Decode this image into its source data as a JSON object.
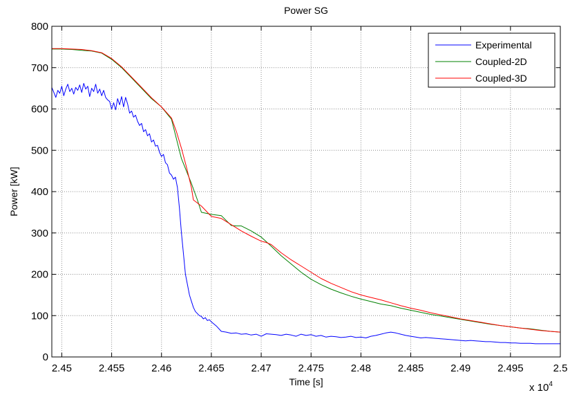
{
  "chart_data": {
    "type": "line",
    "title": "Power SG",
    "xlabel": "Time [s]",
    "ylabel": "Power [kW]",
    "x_multiplier_base": "x 10",
    "x_multiplier_exponent": "4",
    "xlim": [
      2.449,
      2.5
    ],
    "ylim": [
      0,
      800
    ],
    "xticks": [
      2.45,
      2.455,
      2.46,
      2.465,
      2.47,
      2.475,
      2.48,
      2.485,
      2.49,
      2.495,
      2.5
    ],
    "xtick_labels": [
      "2.45",
      "2.455",
      "2.46",
      "2.465",
      "2.47",
      "2.475",
      "2.48",
      "2.485",
      "2.49",
      "2.495",
      "2.5"
    ],
    "yticks": [
      0,
      100,
      200,
      300,
      400,
      500,
      600,
      700,
      800
    ],
    "ytick_labels": [
      "0",
      "100",
      "200",
      "300",
      "400",
      "500",
      "600",
      "700",
      "800"
    ],
    "grid": true,
    "legend_position": "top-right",
    "series": [
      {
        "name": "Experimental",
        "color": "#0000ff",
        "x": [
          2.449,
          2.4492,
          2.4494,
          2.4496,
          2.4498,
          2.45,
          2.4502,
          2.4504,
          2.4506,
          2.4508,
          2.451,
          2.4512,
          2.4514,
          2.4516,
          2.4518,
          2.452,
          2.4522,
          2.4524,
          2.4526,
          2.4528,
          2.453,
          2.4532,
          2.4534,
          2.4536,
          2.4538,
          2.454,
          2.4542,
          2.4544,
          2.4546,
          2.4548,
          2.455,
          2.4552,
          2.4554,
          2.4556,
          2.4558,
          2.456,
          2.4562,
          2.4564,
          2.4566,
          2.4568,
          2.457,
          2.4572,
          2.4574,
          2.4576,
          2.4578,
          2.458,
          2.4582,
          2.4584,
          2.4586,
          2.4588,
          2.459,
          2.4592,
          2.4594,
          2.4596,
          2.4598,
          2.46,
          2.4602,
          2.4604,
          2.4606,
          2.4608,
          2.461,
          2.4612,
          2.4614,
          2.4616,
          2.4618,
          2.462,
          2.4622,
          2.4624,
          2.4626,
          2.4628,
          2.463,
          2.4632,
          2.4634,
          2.4636,
          2.4638,
          2.464,
          2.4642,
          2.4644,
          2.4646,
          2.4648,
          2.465,
          2.4655,
          2.466,
          2.4665,
          2.467,
          2.4675,
          2.468,
          2.4685,
          2.469,
          2.4695,
          2.47,
          2.4705,
          2.471,
          2.4715,
          2.472,
          2.4725,
          2.473,
          2.4735,
          2.474,
          2.4745,
          2.475,
          2.4755,
          2.476,
          2.4765,
          2.477,
          2.4775,
          2.478,
          2.4785,
          2.479,
          2.4795,
          2.48,
          2.4805,
          2.481,
          2.4815,
          2.482,
          2.4825,
          2.483,
          2.4835,
          2.484,
          2.4845,
          2.485,
          2.4855,
          2.486,
          2.4865,
          2.487,
          2.4875,
          2.488,
          2.4885,
          2.489,
          2.4895,
          2.49,
          2.4905,
          2.491,
          2.4915,
          2.492,
          2.4925,
          2.493,
          2.4935,
          2.494,
          2.4945,
          2.495,
          2.4955,
          2.496,
          2.4965,
          2.497,
          2.4975,
          2.498,
          2.4985,
          2.499,
          2.4995,
          2.5
        ],
        "y": [
          652,
          640,
          628,
          645,
          638,
          655,
          632,
          648,
          660,
          642,
          650,
          636,
          652,
          645,
          658,
          640,
          662,
          648,
          655,
          630,
          650,
          642,
          660,
          638,
          648,
          632,
          645,
          628,
          622,
          618,
          600,
          615,
          598,
          625,
          610,
          630,
          605,
          628,
          612,
          590,
          595,
          580,
          585,
          570,
          560,
          565,
          545,
          550,
          535,
          540,
          520,
          525,
          510,
          512,
          495,
          485,
          490,
          470,
          465,
          445,
          440,
          430,
          435,
          410,
          360,
          300,
          250,
          200,
          175,
          150,
          135,
          120,
          110,
          105,
          100,
          98,
          92,
          95,
          88,
          90,
          85,
          75,
          62,
          60,
          57,
          58,
          55,
          56,
          53,
          55,
          50,
          56,
          55,
          54,
          52,
          55,
          53,
          50,
          55,
          52,
          54,
          50,
          52,
          48,
          50,
          49,
          47,
          48,
          50,
          47,
          48,
          46,
          50,
          52,
          55,
          58,
          60,
          58,
          55,
          52,
          50,
          48,
          46,
          47,
          46,
          45,
          44,
          43,
          42,
          41,
          40,
          39,
          40,
          39,
          38,
          37,
          37,
          36,
          35,
          35,
          34,
          34,
          33,
          33,
          33,
          32,
          32,
          32,
          32,
          32,
          32
        ]
      },
      {
        "name": "Coupled-2D",
        "color": "#008000",
        "x": [
          2.449,
          2.45,
          2.451,
          2.452,
          2.453,
          2.454,
          2.455,
          2.456,
          2.457,
          2.458,
          2.459,
          2.46,
          2.461,
          2.462,
          2.463,
          2.4636,
          2.464,
          2.465,
          2.466,
          2.4665,
          2.467,
          2.4675,
          2.468,
          2.469,
          2.47,
          2.471,
          2.472,
          2.473,
          2.474,
          2.475,
          2.476,
          2.477,
          2.478,
          2.479,
          2.48,
          2.481,
          2.482,
          2.483,
          2.484,
          2.485,
          2.486,
          2.487,
          2.488,
          2.489,
          2.49,
          2.491,
          2.492,
          2.493,
          2.494,
          2.495,
          2.496,
          2.497,
          2.498,
          2.499,
          2.5
        ],
        "y": [
          745,
          745,
          744,
          742,
          740,
          735,
          720,
          700,
          675,
          650,
          625,
          605,
          575,
          480,
          420,
          380,
          350,
          345,
          342,
          330,
          318,
          317,
          317,
          305,
          290,
          268,
          245,
          225,
          205,
          188,
          175,
          164,
          155,
          147,
          140,
          134,
          128,
          124,
          118,
          113,
          108,
          103,
          99,
          95,
          91,
          87,
          83,
          79,
          76,
          73,
          70,
          68,
          65,
          62,
          60
        ]
      },
      {
        "name": "Coupled-3D",
        "color": "#ff0000",
        "x": [
          2.449,
          2.45,
          2.451,
          2.452,
          2.453,
          2.454,
          2.455,
          2.456,
          2.457,
          2.458,
          2.459,
          2.46,
          2.461,
          2.4615,
          2.462,
          2.4625,
          2.463,
          2.4632,
          2.464,
          2.465,
          2.466,
          2.467,
          2.468,
          2.469,
          2.47,
          2.4705,
          2.471,
          2.472,
          2.473,
          2.474,
          2.475,
          2.476,
          2.477,
          2.478,
          2.479,
          2.48,
          2.481,
          2.482,
          2.483,
          2.484,
          2.485,
          2.486,
          2.487,
          2.488,
          2.489,
          2.49,
          2.491,
          2.492,
          2.493,
          2.494,
          2.495,
          2.496,
          2.497,
          2.498,
          2.499,
          2.5
        ],
        "y": [
          746,
          746,
          745,
          744,
          741,
          736,
          722,
          702,
          677,
          652,
          627,
          605,
          578,
          545,
          505,
          460,
          410,
          380,
          365,
          340,
          335,
          320,
          305,
          292,
          280,
          277,
          272,
          252,
          235,
          220,
          205,
          190,
          178,
          168,
          158,
          150,
          144,
          138,
          131,
          124,
          118,
          113,
          107,
          102,
          97,
          92,
          88,
          84,
          80,
          76,
          73,
          70,
          67,
          64,
          62,
          60
        ]
      }
    ]
  }
}
